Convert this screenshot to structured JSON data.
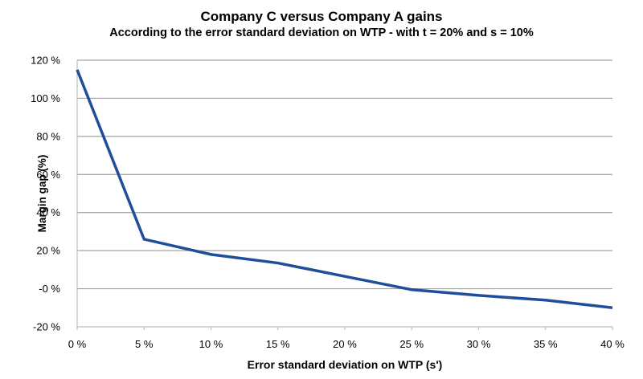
{
  "chart_data": {
    "type": "line",
    "title": "Company C versus Company A gains",
    "subtitle": "According to the error standard deviation on WTP - with t = 20% and s = 10%",
    "xlabel": "Error standard deviation on WTP (s')",
    "ylabel": "Margin gap (%)",
    "x": [
      0,
      5,
      10,
      15,
      20,
      25,
      30,
      35,
      40
    ],
    "x_tick_labels": [
      "0 %",
      "5 %",
      "10 %",
      "15 %",
      "20 %",
      "25 %",
      "30 %",
      "35 %",
      "40 %"
    ],
    "y_ticks": [
      -20,
      0,
      20,
      40,
      60,
      80,
      100,
      120
    ],
    "y_tick_labels": [
      "-20 %",
      "-0 %",
      "20 %",
      "40 %",
      "60 %",
      "80 %",
      "100 %",
      "120 %"
    ],
    "series": [
      {
        "name": "Margin gap",
        "values": [
          115,
          26,
          18,
          13.5,
          6.5,
          -0.5,
          -3.5,
          -6,
          -10
        ]
      }
    ],
    "xlim": [
      0,
      40
    ],
    "ylim": [
      -20,
      120
    ],
    "grid": "horizontal",
    "legend": "none",
    "colors": {
      "line": "#1F4E9B",
      "grid": "#A3A3A3",
      "axis": "#BDBDBD",
      "text": "#000000",
      "background": "#FFFFFF"
    }
  }
}
